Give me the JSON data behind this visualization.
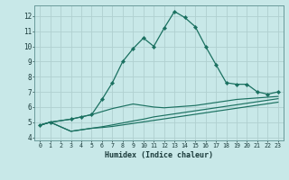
{
  "title": "",
  "xlabel": "Humidex (Indice chaleur)",
  "background_color": "#c8e8e8",
  "grid_color": "#b0d0d0",
  "line_color": "#1a7060",
  "xlim": [
    -0.5,
    23.5
  ],
  "ylim": [
    3.8,
    12.7
  ],
  "xticks": [
    0,
    1,
    2,
    3,
    4,
    5,
    6,
    7,
    8,
    9,
    10,
    11,
    12,
    13,
    14,
    15,
    16,
    17,
    18,
    19,
    20,
    21,
    22,
    23
  ],
  "yticks": [
    4,
    5,
    6,
    7,
    8,
    9,
    10,
    11,
    12
  ],
  "series": [
    {
      "x": [
        0,
        1,
        3,
        4,
        5,
        6,
        7,
        8,
        9,
        10,
        11,
        12,
        13,
        14,
        15,
        16,
        17,
        18,
        19,
        20,
        21,
        22,
        23
      ],
      "y": [
        4.8,
        5.0,
        5.2,
        5.35,
        5.5,
        6.5,
        7.6,
        9.0,
        9.85,
        10.55,
        10.0,
        11.2,
        12.3,
        11.9,
        11.3,
        10.0,
        8.8,
        7.6,
        7.5,
        7.5,
        7.0,
        6.85,
        7.0
      ],
      "markers": true
    },
    {
      "x": [
        0,
        1,
        3,
        4,
        5,
        6,
        7,
        8,
        9,
        10,
        11,
        12,
        13,
        14,
        15,
        16,
        17,
        18,
        19,
        20,
        21,
        22,
        23
      ],
      "y": [
        4.8,
        5.0,
        5.2,
        5.35,
        5.5,
        5.7,
        5.9,
        6.05,
        6.2,
        6.1,
        6.0,
        5.95,
        6.0,
        6.05,
        6.1,
        6.2,
        6.3,
        6.4,
        6.5,
        6.55,
        6.6,
        6.65,
        6.7
      ],
      "markers": false
    },
    {
      "x": [
        0,
        1,
        3,
        4,
        5,
        6,
        7,
        8,
        9,
        10,
        11,
        12,
        13,
        14,
        15,
        16,
        17,
        18,
        19,
        20,
        21,
        22,
        23
      ],
      "y": [
        4.8,
        5.0,
        4.4,
        4.5,
        4.6,
        4.7,
        4.82,
        4.95,
        5.08,
        5.2,
        5.35,
        5.45,
        5.55,
        5.65,
        5.75,
        5.85,
        5.95,
        6.05,
        6.15,
        6.25,
        6.35,
        6.45,
        6.55
      ],
      "markers": false
    },
    {
      "x": [
        0,
        1,
        3,
        4,
        5,
        6,
        7,
        8,
        9,
        10,
        11,
        12,
        13,
        14,
        15,
        16,
        17,
        18,
        19,
        20,
        21,
        22,
        23
      ],
      "y": [
        4.8,
        5.0,
        4.4,
        4.5,
        4.6,
        4.65,
        4.72,
        4.82,
        4.92,
        5.02,
        5.12,
        5.22,
        5.32,
        5.42,
        5.52,
        5.62,
        5.72,
        5.82,
        5.92,
        6.02,
        6.12,
        6.22,
        6.32
      ],
      "markers": false
    }
  ]
}
